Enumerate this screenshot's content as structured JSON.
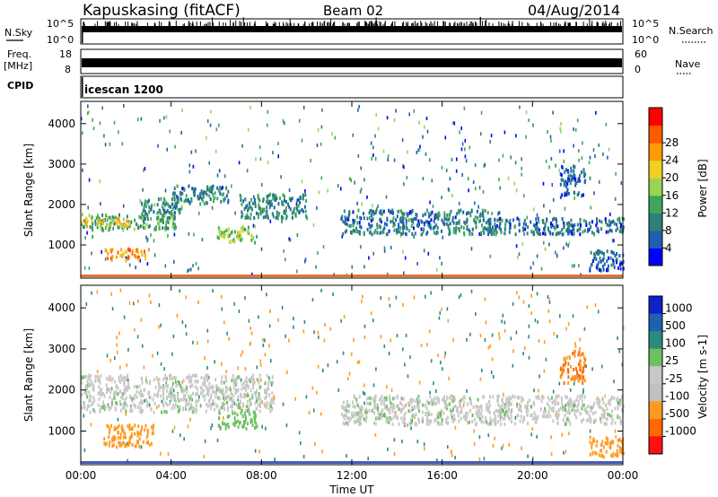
{
  "header": {
    "station": "Kapuskasing (fitACF)",
    "beam": "Beam 02",
    "date": "04/Aug/2014"
  },
  "strips": {
    "nsky_label": "N.Sky",
    "nsky_scale_top": "10^5",
    "nsky_scale_bottom": "10^0",
    "nsearch_label": "N.Search",
    "nsearch_scale_top": "10^5",
    "nsearch_scale_bottom": "10^0",
    "freq_label": "Freq.",
    "freq_unit": "[MHz]",
    "freq_ticks": [
      "18",
      "8"
    ],
    "nave_label": "Nave",
    "nave_ticks": [
      "60",
      "0"
    ],
    "cpid_label": "CPID",
    "cpid_value": "icescan 1200"
  },
  "colors": {
    "power_scale": [
      "#0000ff",
      "#1e5fb0",
      "#2f7f78",
      "#3ea85a",
      "#99d455",
      "#f0d020",
      "#ff9a00",
      "#ff5a00",
      "#ff0000"
    ],
    "velocity_scale": [
      "#1020c8",
      "#2060b0",
      "#2a8a80",
      "#6cc060",
      "#c8c8c8",
      "#c0c0c0",
      "#ff9a20",
      "#ff6a00",
      "#ff1010"
    ],
    "ground_scatter": "#a0a0a0"
  },
  "chart_data": [
    {
      "type": "heatmap",
      "title": "",
      "xlabel": "",
      "ylabel": "Slant Range [km]",
      "x_ticks": [
        "00:00",
        "04:00",
        "08:00",
        "12:00",
        "16:00",
        "20:00",
        "00:00"
      ],
      "xlim_hours": [
        0,
        24
      ],
      "y_ticks": [
        1000,
        2000,
        3000,
        4000
      ],
      "ylim": [
        180,
        4550
      ],
      "colorbar_label": "Power [dB]",
      "colorbar_ticks": [
        4,
        8,
        12,
        16,
        20,
        24,
        28
      ],
      "colorbar_range": [
        0,
        32
      ],
      "grid": false,
      "regions": [
        {
          "t": [
            0.0,
            4.2
          ],
          "range": [
            1400,
            1800
          ],
          "value": 12
        },
        {
          "t": [
            0.0,
            2.2
          ],
          "range": [
            1500,
            1700
          ],
          "value": 20
        },
        {
          "t": [
            1.0,
            3.0
          ],
          "range": [
            650,
            950
          ],
          "value": 24
        },
        {
          "t": [
            2.5,
            4.5
          ],
          "range": [
            1800,
            2200
          ],
          "value": 10
        },
        {
          "t": [
            4.0,
            6.5
          ],
          "range": [
            2050,
            2500
          ],
          "value": 8
        },
        {
          "t": [
            6.0,
            7.8
          ],
          "range": [
            1100,
            1500
          ],
          "value": 16
        },
        {
          "t": [
            7.0,
            10.0
          ],
          "range": [
            1700,
            2300
          ],
          "value": 9
        },
        {
          "t": [
            11.5,
            18.5
          ],
          "range": [
            1300,
            1900
          ],
          "value": 8
        },
        {
          "t": [
            18.0,
            24.0
          ],
          "range": [
            1300,
            1700
          ],
          "value": 7
        },
        {
          "t": [
            21.2,
            22.3
          ],
          "range": [
            2200,
            3000
          ],
          "value": 6
        },
        {
          "t": [
            22.5,
            24.0
          ],
          "range": [
            400,
            900
          ],
          "value": 6
        }
      ]
    },
    {
      "type": "heatmap",
      "title": "",
      "xlabel": "Time UT",
      "ylabel": "Slant Range [km]",
      "x_ticks": [
        "00:00",
        "04:00",
        "08:00",
        "12:00",
        "16:00",
        "20:00",
        "00:00"
      ],
      "xlim_hours": [
        0,
        24
      ],
      "y_ticks": [
        1000,
        2000,
        3000,
        4000
      ],
      "ylim": [
        180,
        4550
      ],
      "colorbar_label": "Velocity [m s-1]",
      "colorbar_ticks": [
        "1000",
        "500",
        "100",
        "25",
        "-25",
        "-100",
        "-500",
        "-1000"
      ],
      "grid": false,
      "regions": [
        {
          "t": [
            0.0,
            8.5
          ],
          "range": [
            1500,
            2400
          ],
          "value": 0
        },
        {
          "t": [
            1.0,
            3.2
          ],
          "range": [
            650,
            1200
          ],
          "value": -300
        },
        {
          "t": [
            6.0,
            7.8
          ],
          "range": [
            1100,
            1500
          ],
          "value": 60
        },
        {
          "t": [
            11.5,
            24.0
          ],
          "range": [
            1200,
            1900
          ],
          "value": 0
        },
        {
          "t": [
            21.2,
            22.3
          ],
          "range": [
            2200,
            3000
          ],
          "value": -600
        },
        {
          "t": [
            22.5,
            24.0
          ],
          "range": [
            400,
            900
          ],
          "value": -200
        }
      ]
    }
  ]
}
